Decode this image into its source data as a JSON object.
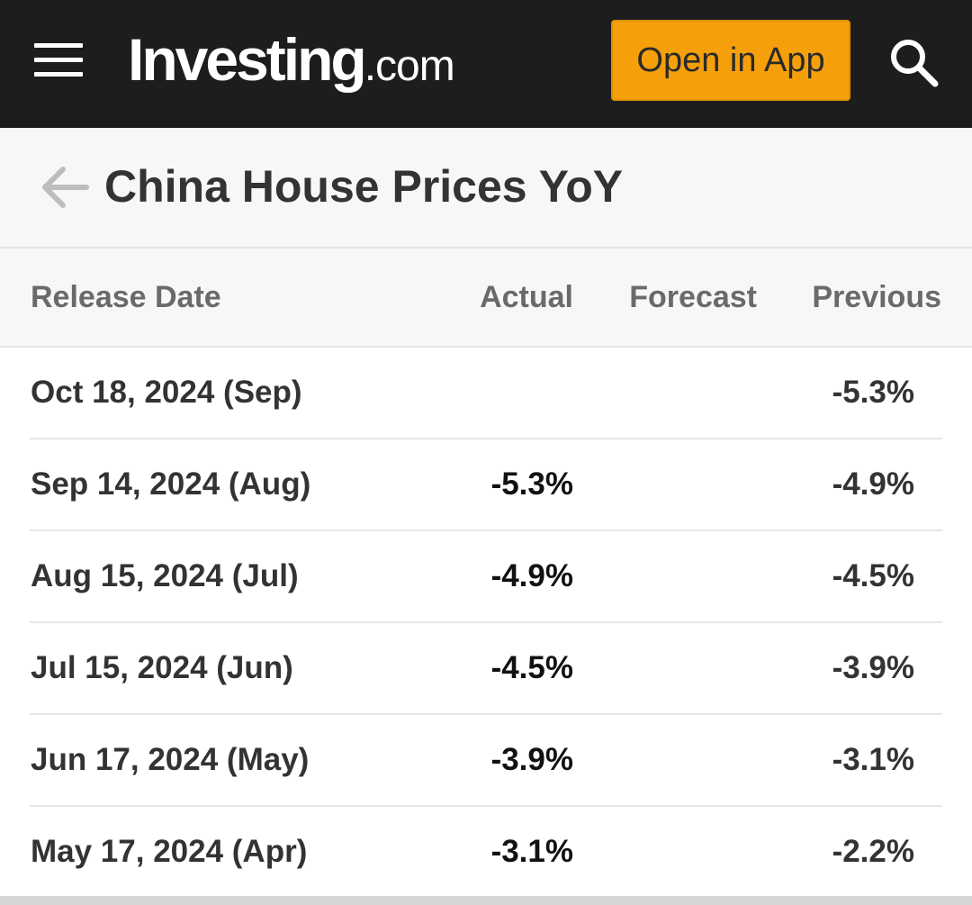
{
  "header": {
    "logo_main": "Investing",
    "logo_suffix": ".com",
    "open_app_label": "Open in App"
  },
  "page": {
    "title": "China House Prices YoY"
  },
  "table": {
    "columns": {
      "release_date": "Release Date",
      "actual": "Actual",
      "forecast": "Forecast",
      "previous": "Previous"
    },
    "rows": [
      {
        "date": "Oct 18, 2024 (Sep)",
        "actual": "",
        "forecast": "",
        "previous": "-5.3%"
      },
      {
        "date": "Sep 14, 2024 (Aug)",
        "actual": "-5.3%",
        "forecast": "",
        "previous": "-4.9%"
      },
      {
        "date": "Aug 15, 2024 (Jul)",
        "actual": "-4.9%",
        "forecast": "",
        "previous": "-4.5%"
      },
      {
        "date": "Jul 15, 2024 (Jun)",
        "actual": "-4.5%",
        "forecast": "",
        "previous": "-3.9%"
      },
      {
        "date": "Jun 17, 2024 (May)",
        "actual": "-3.9%",
        "forecast": "",
        "previous": "-3.1%"
      },
      {
        "date": "May 17, 2024 (Apr)",
        "actual": "-3.1%",
        "forecast": "",
        "previous": "-2.2%"
      }
    ]
  },
  "colors": {
    "header_bg": "#1d1d1d",
    "accent_button": "#f5a00a"
  }
}
